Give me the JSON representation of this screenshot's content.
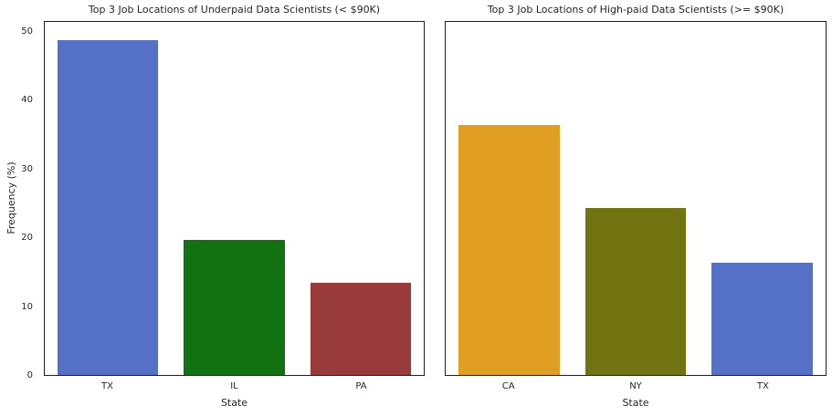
{
  "figure": {
    "background_color": "#ffffff",
    "text_color": "#262626",
    "spine_color": "#1f1f1f"
  },
  "chart_data": [
    {
      "type": "bar",
      "title": "Top 3 Job Locations of Underpaid Data Scientists (< $90K)",
      "xlabel": "State",
      "ylabel": "Frequency (%)",
      "categories": [
        "TX",
        "IL",
        "PA"
      ],
      "values": [
        49.0,
        19.8,
        13.5
      ],
      "bar_colors": [
        "#5471C7",
        "#127211",
        "#993B3B"
      ],
      "ylim": [
        0,
        51.6
      ],
      "yticks": [
        0,
        10,
        20,
        30,
        40,
        50
      ],
      "grid": false,
      "legend": null
    },
    {
      "type": "bar",
      "title": "Top 3 Job Locations of High-paid Data Scientists (>= $90K)",
      "xlabel": "State",
      "ylabel": "",
      "categories": [
        "CA",
        "NY",
        "TX"
      ],
      "values": [
        36.5,
        24.4,
        16.4
      ],
      "bar_colors": [
        "#E09E23",
        "#727412",
        "#5471C7"
      ],
      "ylim": [
        0,
        51.6
      ],
      "yticks": [],
      "grid": false,
      "legend": null
    }
  ]
}
